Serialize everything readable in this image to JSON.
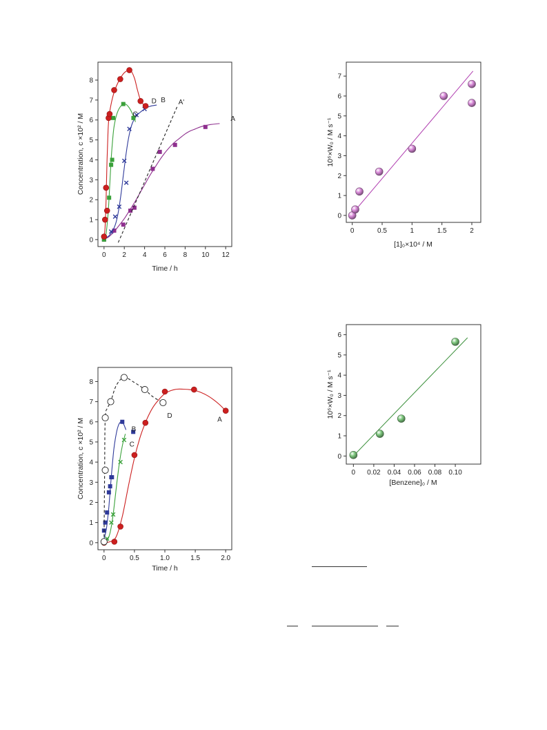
{
  "chart_data": [
    {
      "type": "scatter",
      "xlabel": "Time / h",
      "ylabel": "Concentration, c ×10² / M",
      "xlim": [
        -0.6,
        12.6
      ],
      "ylim": [
        -0.35,
        8.9
      ],
      "xticks": [
        0,
        2,
        4,
        6,
        8,
        10,
        12
      ],
      "yticks": [
        0,
        1,
        2,
        3,
        4,
        5,
        6,
        7,
        8
      ],
      "series": [
        {
          "name": "A",
          "color": "#8e2f8e",
          "marker": "square",
          "x": [
            0,
            1.0,
            1.9,
            2.6,
            3.0,
            4.8,
            5.5,
            7.0,
            10.0
          ],
          "y": [
            0,
            0.45,
            0.75,
            1.45,
            1.6,
            3.55,
            4.4,
            4.75,
            5.65
          ],
          "curve_x": [
            0,
            0.5,
            1.0,
            1.5,
            2.0,
            2.5,
            3.0,
            3.5,
            4.0,
            4.5,
            5.0,
            5.5,
            6.0,
            6.5,
            7.0,
            7.5,
            8.0,
            8.5,
            9.0,
            9.5,
            10.0,
            10.5,
            11.0,
            11.4
          ],
          "curve_y": [
            0.0,
            0.15,
            0.4,
            0.72,
            1.05,
            1.45,
            1.85,
            2.3,
            2.75,
            3.2,
            3.6,
            4.0,
            4.35,
            4.65,
            4.9,
            5.1,
            5.3,
            5.45,
            5.55,
            5.65,
            5.72,
            5.77,
            5.8,
            5.82
          ]
        },
        {
          "name": "A'",
          "color": "#222222",
          "marker": "none",
          "dashed": true,
          "curve_x": [
            1.4,
            7.2
          ],
          "curve_y": [
            -0.15,
            6.65
          ]
        },
        {
          "name": "B",
          "color": "#2f3a9a",
          "marker": "x",
          "x": [
            0,
            0.7,
            1.1,
            1.5,
            2.0,
            2.2,
            2.5,
            3.2,
            4.0
          ],
          "y": [
            0.05,
            0.4,
            1.15,
            1.65,
            3.95,
            2.85,
            5.55,
            6.25,
            6.55
          ],
          "curve_x": [
            0,
            0.5,
            1.0,
            1.3,
            1.6,
            1.9,
            2.2,
            2.5,
            2.8,
            3.2,
            3.6,
            4.0,
            4.5,
            5.2
          ],
          "curve_y": [
            0.05,
            0.2,
            0.6,
            1.1,
            2.0,
            3.2,
            4.4,
            5.3,
            5.85,
            6.2,
            6.4,
            6.55,
            6.68,
            6.75
          ]
        },
        {
          "name": "C",
          "color": "#3aa13a",
          "marker": "square",
          "x": [
            0,
            0.5,
            0.7,
            0.8,
            0.9,
            1.9,
            2.9
          ],
          "y": [
            0,
            2.1,
            3.75,
            4.0,
            6.1,
            6.8,
            6.1
          ],
          "curve_x": [
            0,
            0.2,
            0.4,
            0.55,
            0.7,
            0.85,
            1.0,
            1.3,
            1.7,
            2.1,
            2.5,
            2.9,
            3.1
          ],
          "curve_y": [
            0,
            0.3,
            1.3,
            2.6,
            4.0,
            5.0,
            5.7,
            6.35,
            6.72,
            6.8,
            6.6,
            6.2,
            5.9
          ]
        },
        {
          "name": "D",
          "color": "#cc1f1f",
          "marker": "circle",
          "x": [
            0,
            0.1,
            0.2,
            0.3,
            0.45,
            0.55,
            1.0,
            1.6,
            2.5,
            3.6,
            4.1
          ],
          "y": [
            0.15,
            1.0,
            2.6,
            1.45,
            6.1,
            6.3,
            7.5,
            8.05,
            8.5,
            6.95,
            6.7
          ],
          "curve_x": [
            0,
            0.1,
            0.2,
            0.3,
            0.4,
            0.5,
            0.7,
            1.0,
            1.4,
            1.8,
            2.2,
            2.6,
            3.0,
            3.3,
            3.6,
            4.0
          ],
          "curve_y": [
            0.15,
            0.6,
            2.0,
            4.0,
            5.5,
            6.2,
            6.8,
            7.4,
            7.9,
            8.25,
            8.45,
            8.5,
            8.1,
            7.5,
            7.0,
            6.7
          ]
        }
      ]
    },
    {
      "type": "scatter",
      "xlabel": "[1]₀×10⁴ / M",
      "ylabel": "10⁶×W₀ / M s⁻¹",
      "xlim": [
        -0.1,
        2.15
      ],
      "ylim": [
        -0.35,
        7.7
      ],
      "xticks": [
        0,
        0.5,
        1,
        1.5,
        2
      ],
      "xtick_labels": [
        "0",
        "0.5",
        "1",
        "1.5",
        "2"
      ],
      "yticks": [
        0,
        1,
        2,
        3,
        4,
        5,
        6,
        7
      ],
      "series": [
        {
          "name": "",
          "color": "#d98bd9",
          "marker": "sphere",
          "x": [
            0,
            0.05,
            0.12,
            0.45,
            1.0,
            1.53,
            2.0,
            2.0
          ],
          "y": [
            0,
            0.3,
            1.2,
            2.2,
            3.35,
            6.0,
            6.6,
            5.65
          ],
          "fit_x": [
            -0.05,
            2.02
          ],
          "fit_y": [
            -0.1,
            7.25
          ],
          "fit_color": "#b03fb0"
        }
      ]
    },
    {
      "type": "scatter",
      "xlabel": "Time / h",
      "ylabel": "Concentration, c ×10² / M",
      "xlim": [
        -0.1,
        2.1
      ],
      "ylim": [
        -0.35,
        8.7
      ],
      "xticks": [
        0,
        0.5,
        1.0,
        1.5,
        2.0
      ],
      "xtick_labels": [
        "0",
        "0.5",
        "1.0",
        "1.5",
        "2.0"
      ],
      "yticks": [
        0,
        1,
        2,
        3,
        4,
        5,
        6,
        7,
        8
      ],
      "series": [
        {
          "name": "A",
          "color": "#cc1f1f",
          "marker": "circle",
          "x": [
            0,
            0.17,
            0.27,
            0.5,
            0.68,
            1.0,
            1.48,
            2.0
          ],
          "y": [
            0,
            0.05,
            0.8,
            4.35,
            5.95,
            7.5,
            7.6,
            6.55
          ],
          "curve_x": [
            0,
            0.1,
            0.2,
            0.3,
            0.4,
            0.5,
            0.6,
            0.7,
            0.8,
            0.9,
            1.0,
            1.1,
            1.2,
            1.3,
            1.4,
            1.5,
            1.6,
            1.7,
            1.8,
            1.9,
            2.0
          ],
          "curve_y": [
            0,
            0.05,
            0.3,
            1.3,
            2.8,
            4.2,
            5.3,
            6.1,
            6.7,
            7.1,
            7.4,
            7.55,
            7.62,
            7.62,
            7.6,
            7.55,
            7.45,
            7.3,
            7.1,
            6.85,
            6.55
          ]
        },
        {
          "name": "B",
          "color": "#2f3a9a",
          "marker": "square",
          "x": [
            0,
            0.02,
            0.05,
            0.08,
            0.1,
            0.12,
            0.13,
            0.3,
            0.48
          ],
          "y": [
            0.6,
            1.0,
            1.5,
            2.5,
            2.8,
            3.25,
            3.25,
            6.0,
            5.5
          ],
          "curve_x": [
            0,
            0.04,
            0.08,
            0.12,
            0.16,
            0.2,
            0.24,
            0.28,
            0.32,
            0.36
          ],
          "curve_y": [
            0.2,
            0.7,
            1.8,
            3.3,
            4.6,
            5.4,
            5.85,
            6.0,
            5.9,
            5.6
          ]
        },
        {
          "name": "C",
          "color": "#3aa13a",
          "marker": "x",
          "x": [
            0,
            0.05,
            0.12,
            0.15,
            0.27,
            0.33
          ],
          "y": [
            0,
            0.2,
            1.0,
            1.4,
            4.0,
            5.1
          ],
          "curve_x": [
            0,
            0.05,
            0.1,
            0.15,
            0.2,
            0.25,
            0.3,
            0.35
          ],
          "curve_y": [
            0,
            0.1,
            0.5,
            1.4,
            2.7,
            3.9,
            4.8,
            5.4
          ]
        },
        {
          "name": "D",
          "color": "#222222",
          "marker": "open-circle",
          "dashed": true,
          "x": [
            0,
            0.02,
            0.02,
            0.11,
            0.33,
            0.67,
            0.97
          ],
          "y": [
            0.05,
            3.6,
            6.2,
            7.0,
            8.2,
            7.6,
            6.95
          ],
          "curve_x": [
            0,
            0.01,
            0.02,
            0.06,
            0.11,
            0.2,
            0.33,
            0.5,
            0.67,
            0.8,
            0.97
          ],
          "curve_y": [
            0.05,
            3.6,
            6.2,
            6.7,
            7.0,
            7.8,
            8.2,
            7.95,
            7.6,
            7.25,
            6.95
          ]
        }
      ]
    },
    {
      "type": "scatter",
      "xlabel": "[Benzene]₀ / M",
      "ylabel": "10⁶×W₀ / M s⁻¹",
      "xlim": [
        -0.007,
        0.125
      ],
      "ylim": [
        -0.4,
        6.5
      ],
      "xticks": [
        0,
        0.02,
        0.04,
        0.06,
        0.08,
        0.1
      ],
      "xtick_labels": [
        "0",
        "0.02",
        "0.04",
        "0.06",
        "0.08",
        "0.10"
      ],
      "yticks": [
        0,
        1,
        2,
        3,
        4,
        5,
        6
      ],
      "series": [
        {
          "name": "",
          "color": "#7fc97f",
          "marker": "sphere",
          "x": [
            0,
            0.026,
            0.047,
            0.1
          ],
          "y": [
            0.05,
            1.1,
            1.85,
            5.65
          ],
          "fit_x": [
            -0.002,
            0.112
          ],
          "fit_y": [
            -0.1,
            5.85
          ],
          "fit_color": "#3a8f3a"
        }
      ]
    }
  ]
}
